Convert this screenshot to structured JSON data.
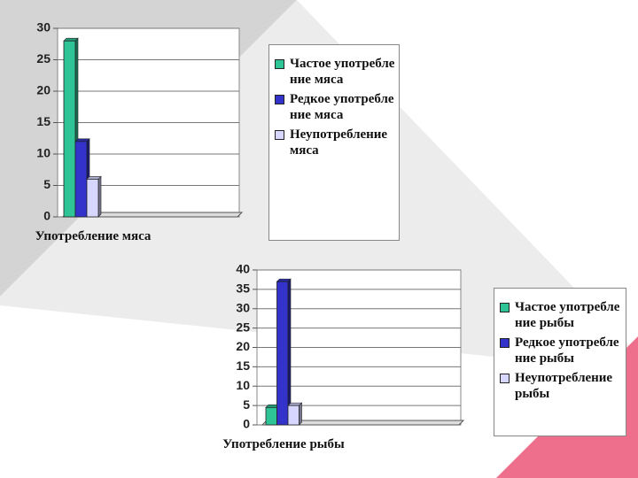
{
  "chart_data": [
    {
      "type": "bar",
      "categories": [
        "Употребление мяса"
      ],
      "ylim": [
        0,
        30
      ],
      "yticks": [
        0,
        5,
        10,
        15,
        20,
        25,
        30
      ],
      "grid": true,
      "series": [
        {
          "name": "Частое употребление мяса",
          "color": "#2fc496",
          "values": [
            28
          ]
        },
        {
          "name": "Редкое употребление мяса",
          "color": "#3333cc",
          "values": [
            12
          ]
        },
        {
          "name": "Неупотребление мяса",
          "color": "#d6d6ff",
          "values": [
            6
          ]
        }
      ]
    },
    {
      "type": "bar",
      "categories": [
        "Употребление рыбы"
      ],
      "ylim": [
        0,
        40
      ],
      "yticks": [
        0,
        5,
        10,
        15,
        20,
        25,
        30,
        35,
        40
      ],
      "grid": true,
      "series": [
        {
          "name": "Частое употребление рыбы",
          "color": "#2fc496",
          "values": [
            4.5
          ]
        },
        {
          "name": "Редкое употребление рыбы",
          "color": "#3333cc",
          "values": [
            37
          ]
        },
        {
          "name": "Неупотребление рыбы",
          "color": "#d6d6ff",
          "values": [
            5
          ]
        }
      ]
    }
  ]
}
